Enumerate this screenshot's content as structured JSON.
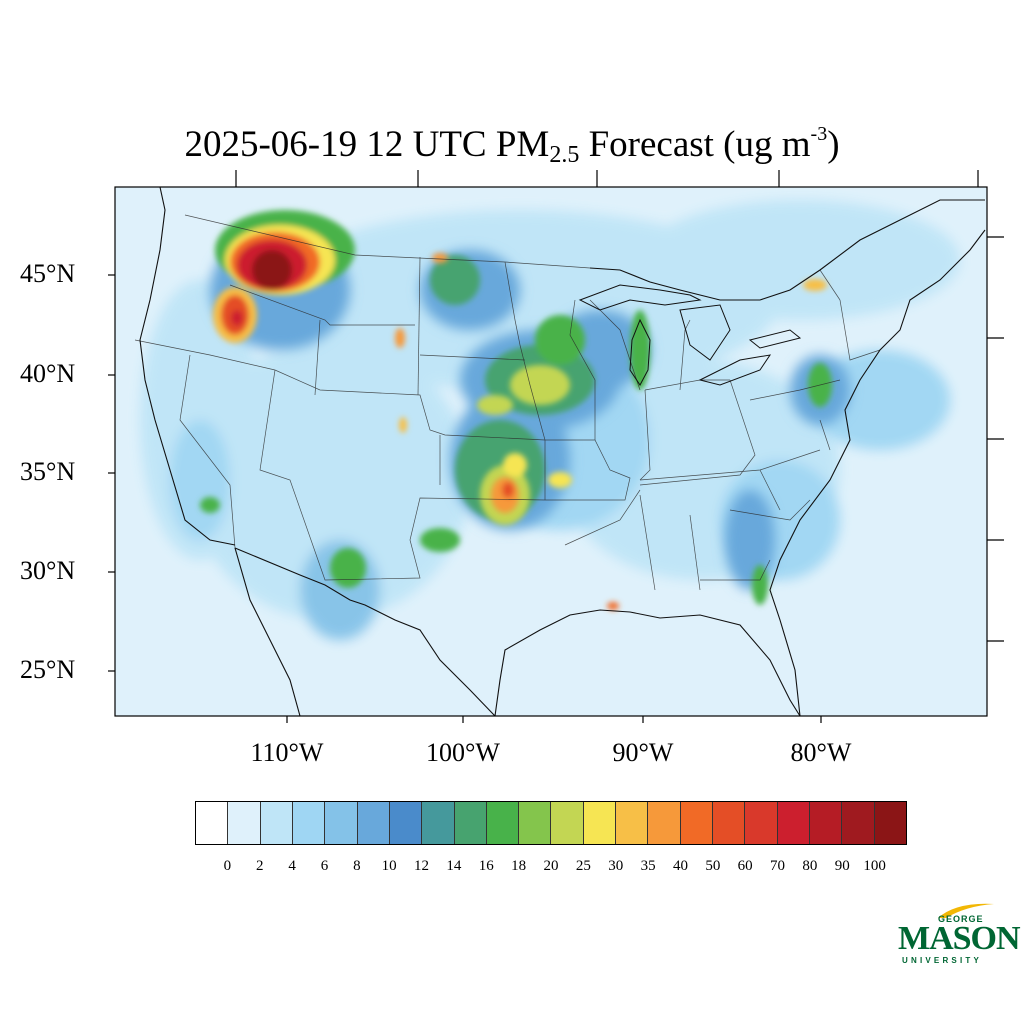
{
  "title": {
    "prefix": "2025-06-19 12 UTC PM",
    "subscript": "2.5",
    "middle": " Forecast (ug m",
    "superscript": "-3",
    "suffix": ")"
  },
  "map": {
    "projection": "lambert-conformal",
    "region": "CONUS",
    "background_color": "#dff1fb",
    "lat_labels": [
      "45°N",
      "40°N",
      "35°N",
      "30°N",
      "25°N"
    ],
    "lon_labels": [
      "110°W",
      "100°W",
      "90°W",
      "80°W"
    ],
    "hotspots": [
      {
        "name": "idaho-montana-smoke",
        "level": "100",
        "color": "#8b1516"
      },
      {
        "name": "oregon-idaho-smoke",
        "level": "60",
        "color": "#e24a28"
      },
      {
        "name": "great-plains-band",
        "level": "25",
        "color": "#c3d653"
      },
      {
        "name": "oklahoma-texas",
        "level": "50",
        "color": "#f16a26"
      },
      {
        "name": "great-lakes",
        "level": "20",
        "color": "#84c54c"
      },
      {
        "name": "northeast-corridor",
        "level": "16",
        "color": "#48b24a"
      }
    ]
  },
  "colorbar": {
    "colors": [
      "#ffffff",
      "#dff1fb",
      "#bfe5f7",
      "#9fd6f3",
      "#84c2e8",
      "#68a8db",
      "#4a8bcb",
      "#45999c",
      "#47a36f",
      "#48b24a",
      "#84c54c",
      "#c3d653",
      "#f6e553",
      "#f7bf47",
      "#f6993a",
      "#f16a26",
      "#e44e26",
      "#d9392b",
      "#cc1f2e",
      "#b51c25",
      "#9f1a1f",
      "#8b1516"
    ],
    "labels": [
      "0",
      "2",
      "4",
      "6",
      "8",
      "10",
      "12",
      "14",
      "16",
      "18",
      "20",
      "25",
      "30",
      "35",
      "40",
      "50",
      "60",
      "70",
      "80",
      "90",
      "100"
    ]
  },
  "logo": {
    "top": "GEORGE",
    "main": "MASON",
    "bottom": "UNIVERSITY",
    "color": "#006633",
    "accent": "#f2b705"
  }
}
